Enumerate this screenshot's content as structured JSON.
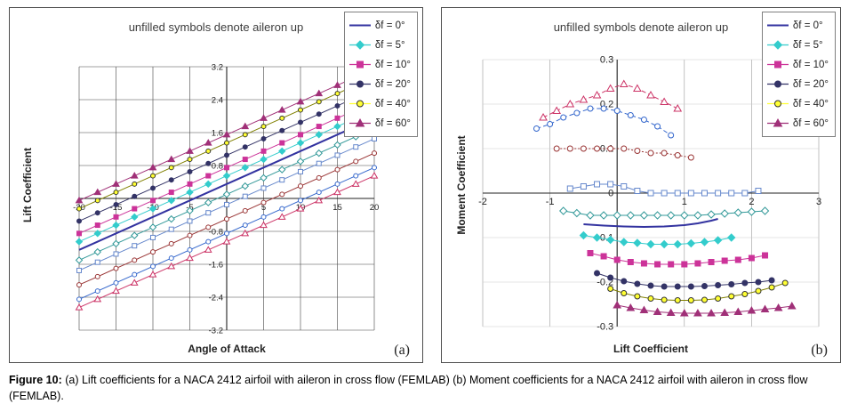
{
  "figure": {
    "caption_prefix": "Figure 10:",
    "caption_body": " (a) Lift coefficients for a NACA 2412 airfoil with aileron in cross flow (FEMLAB) (b) Moment coefficients for a NACA 2412 airfoil with aileron in cross flow (FEMLAB)."
  },
  "legend": [
    {
      "label": "δf = 0°",
      "marker": "none",
      "color": "#3333A0",
      "filled": true
    },
    {
      "label": "δf = 5°",
      "marker": "diamond",
      "color": "#33CCCC",
      "filled": true
    },
    {
      "label": "δf = 10°",
      "marker": "square",
      "color": "#CC3399",
      "filled": true
    },
    {
      "label": "δf = 20°",
      "marker": "circle",
      "color": "#333366",
      "filled": true
    },
    {
      "label": "δf = 40°",
      "marker": "circle",
      "color": "#FFFF33",
      "filled": true,
      "marker_stroke": "#333333"
    },
    {
      "label": "δf = 60°",
      "marker": "triangle",
      "color": "#A03078",
      "filled": true
    }
  ],
  "chart_data": [
    {
      "type": "line",
      "panel_label": "(a)",
      "title": "unfilled symbols denote aileron up",
      "xlabel": "Angle of Attack",
      "ylabel": "Lift Coefficient",
      "xlim": [
        -20,
        20
      ],
      "ylim": [
        -3.2,
        3.2
      ],
      "xticks": [
        -20,
        -15,
        -10,
        -5,
        0,
        5,
        10,
        15,
        20
      ],
      "yticks": [
        -3.2,
        -2.4,
        -1.6,
        -0.8,
        0,
        0.8,
        1.6,
        2.4,
        3.2
      ],
      "xtick_labels": [
        {
          "v": -20,
          "t": "-20"
        },
        {
          "v": -15,
          "t": "-15"
        },
        {
          "v": -10,
          "t": "-10"
        },
        {
          "v": -5,
          "t": "-5"
        },
        {
          "v": 5,
          "t": "5"
        },
        {
          "v": 10,
          "t": "10"
        },
        {
          "v": 15,
          "t": "15"
        },
        {
          "v": 20,
          "t": "20"
        }
      ],
      "ytick_labels": [
        {
          "v": 3.2,
          "t": "3.2"
        },
        {
          "v": 2.4,
          "t": "2.4"
        },
        {
          "v": 1.6,
          "t": "1.6"
        },
        {
          "v": 0.8,
          "t": "0.8"
        },
        {
          "v": -0.8,
          "t": "-0.8"
        },
        {
          "v": -1.6,
          "t": "-1.6"
        },
        {
          "v": -2.4,
          "t": "-2.4"
        },
        {
          "v": -3.2,
          "t": "-3.2"
        }
      ],
      "x": [
        -20,
        -17.5,
        -15,
        -12.5,
        -10,
        -7.5,
        -5,
        -2.5,
        0,
        2.5,
        5,
        7.5,
        10,
        12.5,
        15,
        17.5,
        20
      ],
      "series": [
        {
          "name": "δf = 0°",
          "marker": "none",
          "color": "#3333A0",
          "width": 2,
          "filled": true,
          "y": [
            -1.25,
            -1.05,
            -0.85,
            -0.65,
            -0.45,
            -0.25,
            -0.05,
            0.15,
            0.35,
            0.55,
            0.75,
            0.95,
            1.15,
            1.35,
            1.55,
            1.75,
            1.95
          ]
        },
        {
          "name": "δf = 5° aileron down",
          "marker": "diamond",
          "color": "#33CCCC",
          "filled": true,
          "y": [
            -1.05,
            -0.85,
            -0.65,
            -0.45,
            -0.25,
            -0.05,
            0.15,
            0.35,
            0.55,
            0.75,
            0.95,
            1.15,
            1.35,
            1.55,
            1.75,
            1.95,
            2.15
          ]
        },
        {
          "name": "δf = 10° aileron down",
          "marker": "square",
          "color": "#CC3399",
          "filled": true,
          "y": [
            -0.85,
            -0.65,
            -0.45,
            -0.25,
            -0.05,
            0.15,
            0.35,
            0.55,
            0.75,
            0.95,
            1.15,
            1.35,
            1.55,
            1.75,
            1.95,
            2.15,
            2.35
          ]
        },
        {
          "name": "δf = 20° aileron down",
          "marker": "circle",
          "color": "#333366",
          "filled": true,
          "y": [
            -0.55,
            -0.35,
            -0.15,
            0.05,
            0.25,
            0.45,
            0.65,
            0.85,
            1.05,
            1.25,
            1.45,
            1.65,
            1.85,
            2.05,
            2.25,
            2.45,
            2.65
          ]
        },
        {
          "name": "δf = 40° aileron down",
          "marker": "circle",
          "color": "#FFFF33",
          "marker_stroke": "#333333",
          "line_color": "#808000",
          "filled": true,
          "y": [
            -0.25,
            -0.05,
            0.15,
            0.35,
            0.55,
            0.75,
            0.95,
            1.15,
            1.35,
            1.55,
            1.75,
            1.95,
            2.15,
            2.35,
            2.55,
            2.75,
            2.95
          ]
        },
        {
          "name": "δf = 60° aileron down",
          "marker": "triangle",
          "color": "#A03078",
          "filled": true,
          "y": [
            -0.05,
            0.15,
            0.35,
            0.55,
            0.75,
            0.95,
            1.15,
            1.35,
            1.55,
            1.75,
            1.95,
            2.15,
            2.35,
            2.55,
            2.75,
            2.95,
            3.15
          ]
        },
        {
          "name": "δf = 5° aileron up",
          "marker": "diamond",
          "color": "#339999",
          "filled": false,
          "y": [
            -1.5,
            -1.3,
            -1.1,
            -0.9,
            -0.7,
            -0.5,
            -0.3,
            -0.1,
            0.1,
            0.3,
            0.5,
            0.7,
            0.9,
            1.1,
            1.3,
            1.5,
            1.7
          ]
        },
        {
          "name": "δf = 10° aileron up",
          "marker": "square",
          "color": "#6688CC",
          "filled": false,
          "y": [
            -1.75,
            -1.55,
            -1.35,
            -1.15,
            -0.95,
            -0.75,
            -0.55,
            -0.35,
            -0.15,
            0.05,
            0.25,
            0.45,
            0.65,
            0.85,
            1.05,
            1.25,
            1.45
          ]
        },
        {
          "name": "δf = 20° aileron up",
          "marker": "circle",
          "color": "#993333",
          "filled": false,
          "y": [
            -2.1,
            -1.9,
            -1.7,
            -1.5,
            -1.3,
            -1.1,
            -0.9,
            -0.7,
            -0.5,
            -0.3,
            -0.1,
            0.1,
            0.3,
            0.5,
            0.7,
            0.9,
            1.1
          ]
        },
        {
          "name": "δf = 40° aileron up",
          "marker": "circle",
          "color": "#3366CC",
          "filled": false,
          "y": [
            -2.45,
            -2.25,
            -2.05,
            -1.85,
            -1.65,
            -1.45,
            -1.25,
            -1.05,
            -0.85,
            -0.65,
            -0.45,
            -0.25,
            -0.05,
            0.15,
            0.35,
            0.55,
            0.75
          ]
        },
        {
          "name": "δf = 60° aileron up",
          "marker": "triangle",
          "color": "#CC3366",
          "filled": false,
          "y": [
            -2.65,
            -2.45,
            -2.25,
            -2.05,
            -1.85,
            -1.65,
            -1.45,
            -1.25,
            -1.05,
            -0.85,
            -0.65,
            -0.45,
            -0.25,
            -0.05,
            0.15,
            0.35,
            0.55
          ]
        }
      ]
    },
    {
      "type": "line",
      "panel_label": "(b)",
      "title": "unfilled symbols denote aileron up",
      "xlabel": "Lift Coefficient",
      "ylabel": "Moment Coefficient",
      "xlim": [
        -2,
        3
      ],
      "ylim": [
        -0.3,
        0.3
      ],
      "xticks": [
        -2,
        -1,
        0,
        1,
        2,
        3
      ],
      "yticks": [
        -0.3,
        -0.2,
        -0.1,
        0,
        0.1,
        0.2,
        0.3
      ],
      "xtick_labels": [
        {
          "v": -2,
          "t": "-2"
        },
        {
          "v": -1,
          "t": "-1"
        },
        {
          "v": 1,
          "t": "1"
        },
        {
          "v": 2,
          "t": "2"
        },
        {
          "v": 3,
          "t": "3"
        }
      ],
      "ytick_labels": [
        {
          "v": 0.3,
          "t": "0.3"
        },
        {
          "v": 0.2,
          "t": "0.2"
        },
        {
          "v": 0.1,
          "t": "0.1"
        },
        {
          "v": 0,
          "t": "0"
        },
        {
          "v": -0.1,
          "t": "-0.1"
        },
        {
          "v": -0.2,
          "t": "-0.2"
        },
        {
          "v": -0.3,
          "t": "-0.3"
        }
      ],
      "series": [
        {
          "name": "δf = 60° aileron up",
          "marker": "triangle",
          "color": "#CC3366",
          "filled": false,
          "dash": "5,3",
          "x": [
            -1.1,
            -0.9,
            -0.7,
            -0.5,
            -0.3,
            -0.1,
            0.1,
            0.3,
            0.5,
            0.7,
            0.9
          ],
          "y": [
            0.17,
            0.185,
            0.2,
            0.21,
            0.22,
            0.235,
            0.245,
            0.235,
            0.22,
            0.205,
            0.19
          ]
        },
        {
          "name": "δf = 40° aileron up",
          "marker": "circle",
          "color": "#3366CC",
          "filled": false,
          "dash": "5,3",
          "x": [
            -1.2,
            -1.0,
            -0.8,
            -0.6,
            -0.4,
            -0.2,
            0,
            0.2,
            0.4,
            0.6,
            0.8
          ],
          "y": [
            0.145,
            0.155,
            0.17,
            0.18,
            0.19,
            0.19,
            0.185,
            0.175,
            0.165,
            0.15,
            0.13
          ]
        },
        {
          "name": "δf = 20° aileron up",
          "marker": "circle",
          "color": "#993333",
          "filled": false,
          "dash": "2,2",
          "x": [
            -0.9,
            -0.7,
            -0.5,
            -0.3,
            -0.1,
            0.1,
            0.3,
            0.5,
            0.7,
            0.9,
            1.1
          ],
          "y": [
            0.1,
            0.1,
            0.1,
            0.1,
            0.1,
            0.1,
            0.095,
            0.09,
            0.09,
            0.085,
            0.08
          ]
        },
        {
          "name": "δf = 10° aileron up",
          "marker": "square",
          "color": "#6688CC",
          "filled": false,
          "x": [
            -0.7,
            -0.5,
            -0.3,
            -0.1,
            0.1,
            0.3,
            0.5,
            0.7,
            0.9,
            1.1,
            1.3,
            1.5,
            1.7,
            1.9,
            2.1
          ],
          "y": [
            0.01,
            0.015,
            0.02,
            0.02,
            0.015,
            0.005,
            0,
            0,
            0,
            0,
            0,
            0,
            0,
            0,
            0.005
          ]
        },
        {
          "name": "δf = 5° aileron up",
          "marker": "diamond",
          "color": "#339999",
          "filled": false,
          "x": [
            -0.8,
            -0.6,
            -0.4,
            -0.2,
            0,
            0.2,
            0.4,
            0.6,
            0.8,
            1.0,
            1.2,
            1.4,
            1.6,
            1.8,
            2.0,
            2.2
          ],
          "y": [
            -0.04,
            -0.045,
            -0.05,
            -0.05,
            -0.05,
            -0.05,
            -0.05,
            -0.05,
            -0.05,
            -0.05,
            -0.05,
            -0.048,
            -0.046,
            -0.044,
            -0.042,
            -0.04
          ]
        },
        {
          "name": "δf = 0°",
          "marker": "none",
          "color": "#3333A0",
          "width": 2,
          "filled": true,
          "x": [
            -0.5,
            -0.2,
            0.1,
            0.4,
            0.7,
            1.0,
            1.2,
            1.4,
            1.5
          ],
          "y": [
            -0.07,
            -0.073,
            -0.075,
            -0.076,
            -0.075,
            -0.072,
            -0.068,
            -0.062,
            -0.058
          ]
        },
        {
          "name": "δf = 5° aileron down",
          "marker": "diamond",
          "color": "#33CCCC",
          "filled": true,
          "x": [
            -0.5,
            -0.3,
            -0.1,
            0.1,
            0.3,
            0.5,
            0.7,
            0.9,
            1.1,
            1.3,
            1.5,
            1.7
          ],
          "y": [
            -0.095,
            -0.1,
            -0.105,
            -0.11,
            -0.112,
            -0.115,
            -0.115,
            -0.115,
            -0.113,
            -0.11,
            -0.106,
            -0.1
          ]
        },
        {
          "name": "δf = 10° aileron down",
          "marker": "square",
          "color": "#CC3399",
          "filled": true,
          "x": [
            -0.4,
            -0.2,
            0,
            0.2,
            0.4,
            0.6,
            0.8,
            1.0,
            1.2,
            1.4,
            1.6,
            1.8,
            2.0,
            2.2
          ],
          "y": [
            -0.135,
            -0.142,
            -0.15,
            -0.155,
            -0.158,
            -0.16,
            -0.16,
            -0.16,
            -0.158,
            -0.155,
            -0.152,
            -0.15,
            -0.146,
            -0.14
          ]
        },
        {
          "name": "δf = 20° aileron down",
          "marker": "circle",
          "color": "#333366",
          "filled": true,
          "x": [
            -0.3,
            -0.1,
            0.1,
            0.3,
            0.5,
            0.7,
            0.9,
            1.1,
            1.3,
            1.5,
            1.7,
            1.9,
            2.1,
            2.3
          ],
          "y": [
            -0.18,
            -0.19,
            -0.198,
            -0.204,
            -0.208,
            -0.21,
            -0.21,
            -0.21,
            -0.209,
            -0.207,
            -0.205,
            -0.202,
            -0.2,
            -0.196
          ]
        },
        {
          "name": "δf = 40° aileron down",
          "marker": "circle",
          "color": "#FFFF33",
          "marker_stroke": "#333333",
          "line_color": "#808000",
          "filled": true,
          "x": [
            -0.1,
            0.1,
            0.3,
            0.5,
            0.7,
            0.9,
            1.1,
            1.3,
            1.5,
            1.7,
            1.9,
            2.1,
            2.3,
            2.5
          ],
          "y": [
            -0.215,
            -0.225,
            -0.232,
            -0.237,
            -0.24,
            -0.241,
            -0.241,
            -0.24,
            -0.237,
            -0.232,
            -0.227,
            -0.22,
            -0.212,
            -0.202
          ]
        },
        {
          "name": "δf = 60° aileron down",
          "marker": "triangle",
          "color": "#A03078",
          "filled": true,
          "x": [
            0.0,
            0.2,
            0.4,
            0.6,
            0.8,
            1.0,
            1.2,
            1.4,
            1.6,
            1.8,
            2.0,
            2.2,
            2.4,
            2.6
          ],
          "y": [
            -0.252,
            -0.258,
            -0.263,
            -0.267,
            -0.269,
            -0.27,
            -0.27,
            -0.27,
            -0.269,
            -0.267,
            -0.264,
            -0.261,
            -0.258,
            -0.254
          ]
        }
      ]
    }
  ]
}
